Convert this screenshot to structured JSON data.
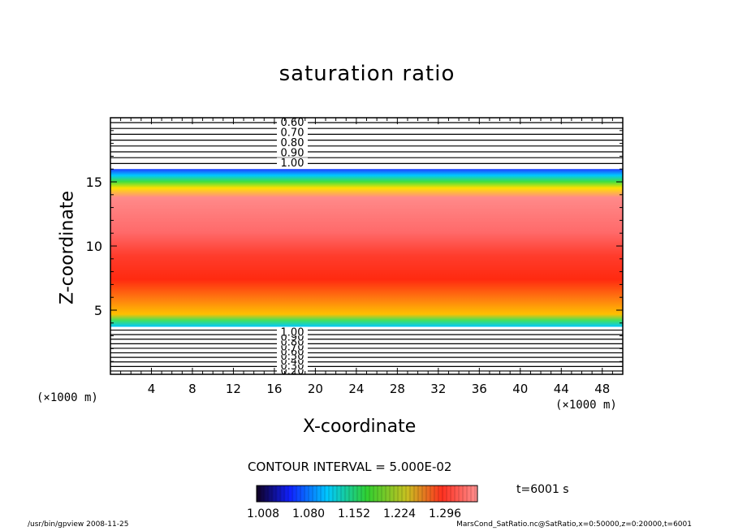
{
  "chart_data": {
    "type": "heatmap",
    "title": "saturation ratio",
    "xlabel": "X-coordinate",
    "ylabel": "Z-coordinate",
    "x_unit": "(×1000 m)",
    "y_unit": "(×1000 m)",
    "xlim": [
      0,
      50
    ],
    "ylim": [
      0,
      20
    ],
    "x_ticks": [
      4,
      8,
      12,
      16,
      20,
      24,
      28,
      32,
      36,
      40,
      44,
      48
    ],
    "y_ticks": [
      5,
      10,
      15
    ],
    "color_levels": [
      1.008,
      1.08,
      1.152,
      1.224,
      1.296
    ],
    "colorbar_labels": [
      "1.008",
      "1.080",
      "1.152",
      "1.224",
      "1.296"
    ],
    "contour_interval": "CONTOUR INTERVAL = 5.000E-02",
    "time_label": "t=6001 s",
    "upper_contour_labels": [
      "0.60",
      "0.70",
      "0.80",
      "0.90",
      "1.00"
    ],
    "lower_contour_labels": [
      "0.20",
      "0.30",
      "0.40",
      "0.50",
      "0.60",
      "0.70",
      "0.80",
      "0.90",
      "1.00"
    ],
    "supersaturated_layer": {
      "z_bottom": 3.7,
      "z_top": 16.0
    },
    "colors": {
      "low": "#1e3cff",
      "mid": "#33dd33",
      "high": "#ff2020",
      "peak": "#ff7070"
    }
  },
  "footer": {
    "left": "/usr/bin/gpview   2008-11-25",
    "right": "MarsCond_SatRatio.nc@SatRatio,x=0:50000,z=0:20000,t=6001"
  }
}
